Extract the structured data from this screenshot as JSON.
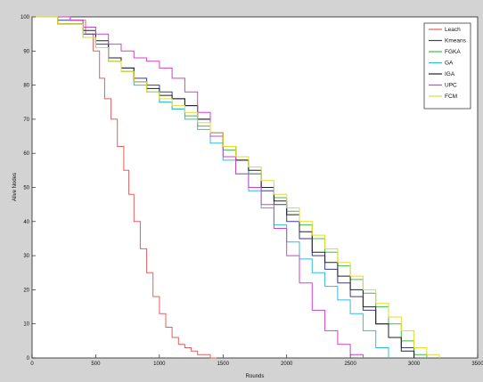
{
  "chart_data": {
    "type": "line",
    "title": "",
    "xlabel": "Rounds",
    "ylabel": "Alive Nodes",
    "xlim": [
      0,
      3500
    ],
    "ylim": [
      0,
      100
    ],
    "xticks": [
      0,
      500,
      1000,
      1500,
      2000,
      2500,
      3000,
      3500
    ],
    "yticks": [
      0,
      10,
      20,
      30,
      40,
      50,
      60,
      70,
      80,
      90,
      100
    ],
    "grid": false,
    "legend_position": "top-right",
    "series": [
      {
        "name": "Leach",
        "color": "#e06060",
        "x": [
          0,
          300,
          420,
          480,
          530,
          570,
          620,
          670,
          720,
          760,
          800,
          850,
          900,
          950,
          1000,
          1050,
          1100,
          1150,
          1200,
          1250,
          1300,
          1350,
          1400,
          1450
        ],
        "y": [
          100,
          99,
          95,
          90,
          82,
          76,
          70,
          62,
          55,
          48,
          40,
          32,
          25,
          18,
          13,
          9,
          6,
          4,
          3,
          2,
          1,
          1,
          0,
          0
        ]
      },
      {
        "name": "Kmeans",
        "color": "#3a3a9a",
        "x": [
          0,
          200,
          400,
          500,
          600,
          700,
          800,
          900,
          1000,
          1100,
          1200,
          1300,
          1400,
          1500,
          1600,
          1700,
          1800,
          1900,
          2000,
          2100,
          2200,
          2300,
          2400,
          2500,
          2600,
          2700,
          2800,
          2900,
          3000
        ],
        "y": [
          100,
          99,
          95,
          92,
          88,
          85,
          82,
          80,
          78,
          76,
          74,
          70,
          66,
          62,
          58,
          54,
          49,
          45,
          40,
          35,
          30,
          26,
          22,
          18,
          14,
          10,
          6,
          3,
          0
        ]
      },
      {
        "name": "FGKA",
        "color": "#44bb44",
        "x": [
          0,
          200,
          400,
          500,
          600,
          700,
          800,
          900,
          1000,
          1100,
          1200,
          1300,
          1400,
          1500,
          1600,
          1700,
          1800,
          1900,
          2000,
          2100,
          2200,
          2300,
          2400,
          2500,
          2600,
          2700,
          2800,
          2900,
          3000,
          3100
        ],
        "y": [
          100,
          98,
          94,
          91,
          87,
          84,
          81,
          78,
          75,
          73,
          71,
          68,
          65,
          61,
          58,
          54,
          50,
          47,
          43,
          39,
          35,
          31,
          27,
          23,
          19,
          15,
          10,
          5,
          1,
          0
        ]
      },
      {
        "name": "GA",
        "color": "#33bbdd",
        "x": [
          0,
          200,
          400,
          500,
          600,
          700,
          800,
          900,
          1000,
          1100,
          1200,
          1300,
          1400,
          1500,
          1600,
          1700,
          1800,
          1900,
          2000,
          2100,
          2200,
          2300,
          2400,
          2500,
          2600,
          2700,
          2800
        ],
        "y": [
          100,
          98,
          94,
          91,
          87,
          84,
          80,
          78,
          75,
          73,
          70,
          67,
          63,
          58,
          54,
          49,
          44,
          39,
          34,
          29,
          25,
          21,
          17,
          13,
          8,
          3,
          0
        ]
      },
      {
        "name": "IGA",
        "color": "#222222",
        "x": [
          0,
          200,
          400,
          500,
          600,
          700,
          800,
          900,
          1000,
          1100,
          1200,
          1300,
          1400,
          1500,
          1600,
          1700,
          1800,
          1900,
          2000,
          2100,
          2200,
          2300,
          2400,
          2500,
          2600,
          2700,
          2800,
          2900,
          3000
        ],
        "y": [
          100,
          98,
          96,
          93,
          88,
          85,
          81,
          79,
          77,
          76,
          74,
          70,
          66,
          62,
          58,
          55,
          50,
          46,
          42,
          37,
          31,
          28,
          24,
          20,
          15,
          10,
          6,
          2,
          0
        ]
      },
      {
        "name": "UPC",
        "color": "#cc44cc",
        "x": [
          0,
          300,
          400,
          500,
          600,
          700,
          800,
          900,
          1000,
          1100,
          1200,
          1300,
          1400,
          1500,
          1600,
          1700,
          1800,
          1900,
          2000,
          2100,
          2200,
          2300,
          2400,
          2500,
          2600
        ],
        "y": [
          100,
          99,
          97,
          95,
          92,
          90,
          88,
          87,
          85,
          82,
          78,
          72,
          65,
          59,
          54,
          50,
          45,
          38,
          30,
          22,
          14,
          8,
          4,
          1,
          0
        ]
      },
      {
        "name": "FCM",
        "color": "#dddd33",
        "x": [
          0,
          200,
          400,
          500,
          600,
          700,
          800,
          900,
          1000,
          1100,
          1200,
          1300,
          1400,
          1500,
          1600,
          1700,
          1800,
          1900,
          2000,
          2100,
          2200,
          2300,
          2400,
          2500,
          2600,
          2700,
          2800,
          2900,
          3000,
          3100,
          3200
        ],
        "y": [
          100,
          98,
          94,
          91,
          87,
          84,
          81,
          78,
          76,
          74,
          72,
          69,
          66,
          62,
          59,
          56,
          52,
          48,
          44,
          40,
          36,
          32,
          28,
          24,
          20,
          16,
          12,
          8,
          3,
          1,
          0
        ]
      }
    ]
  }
}
